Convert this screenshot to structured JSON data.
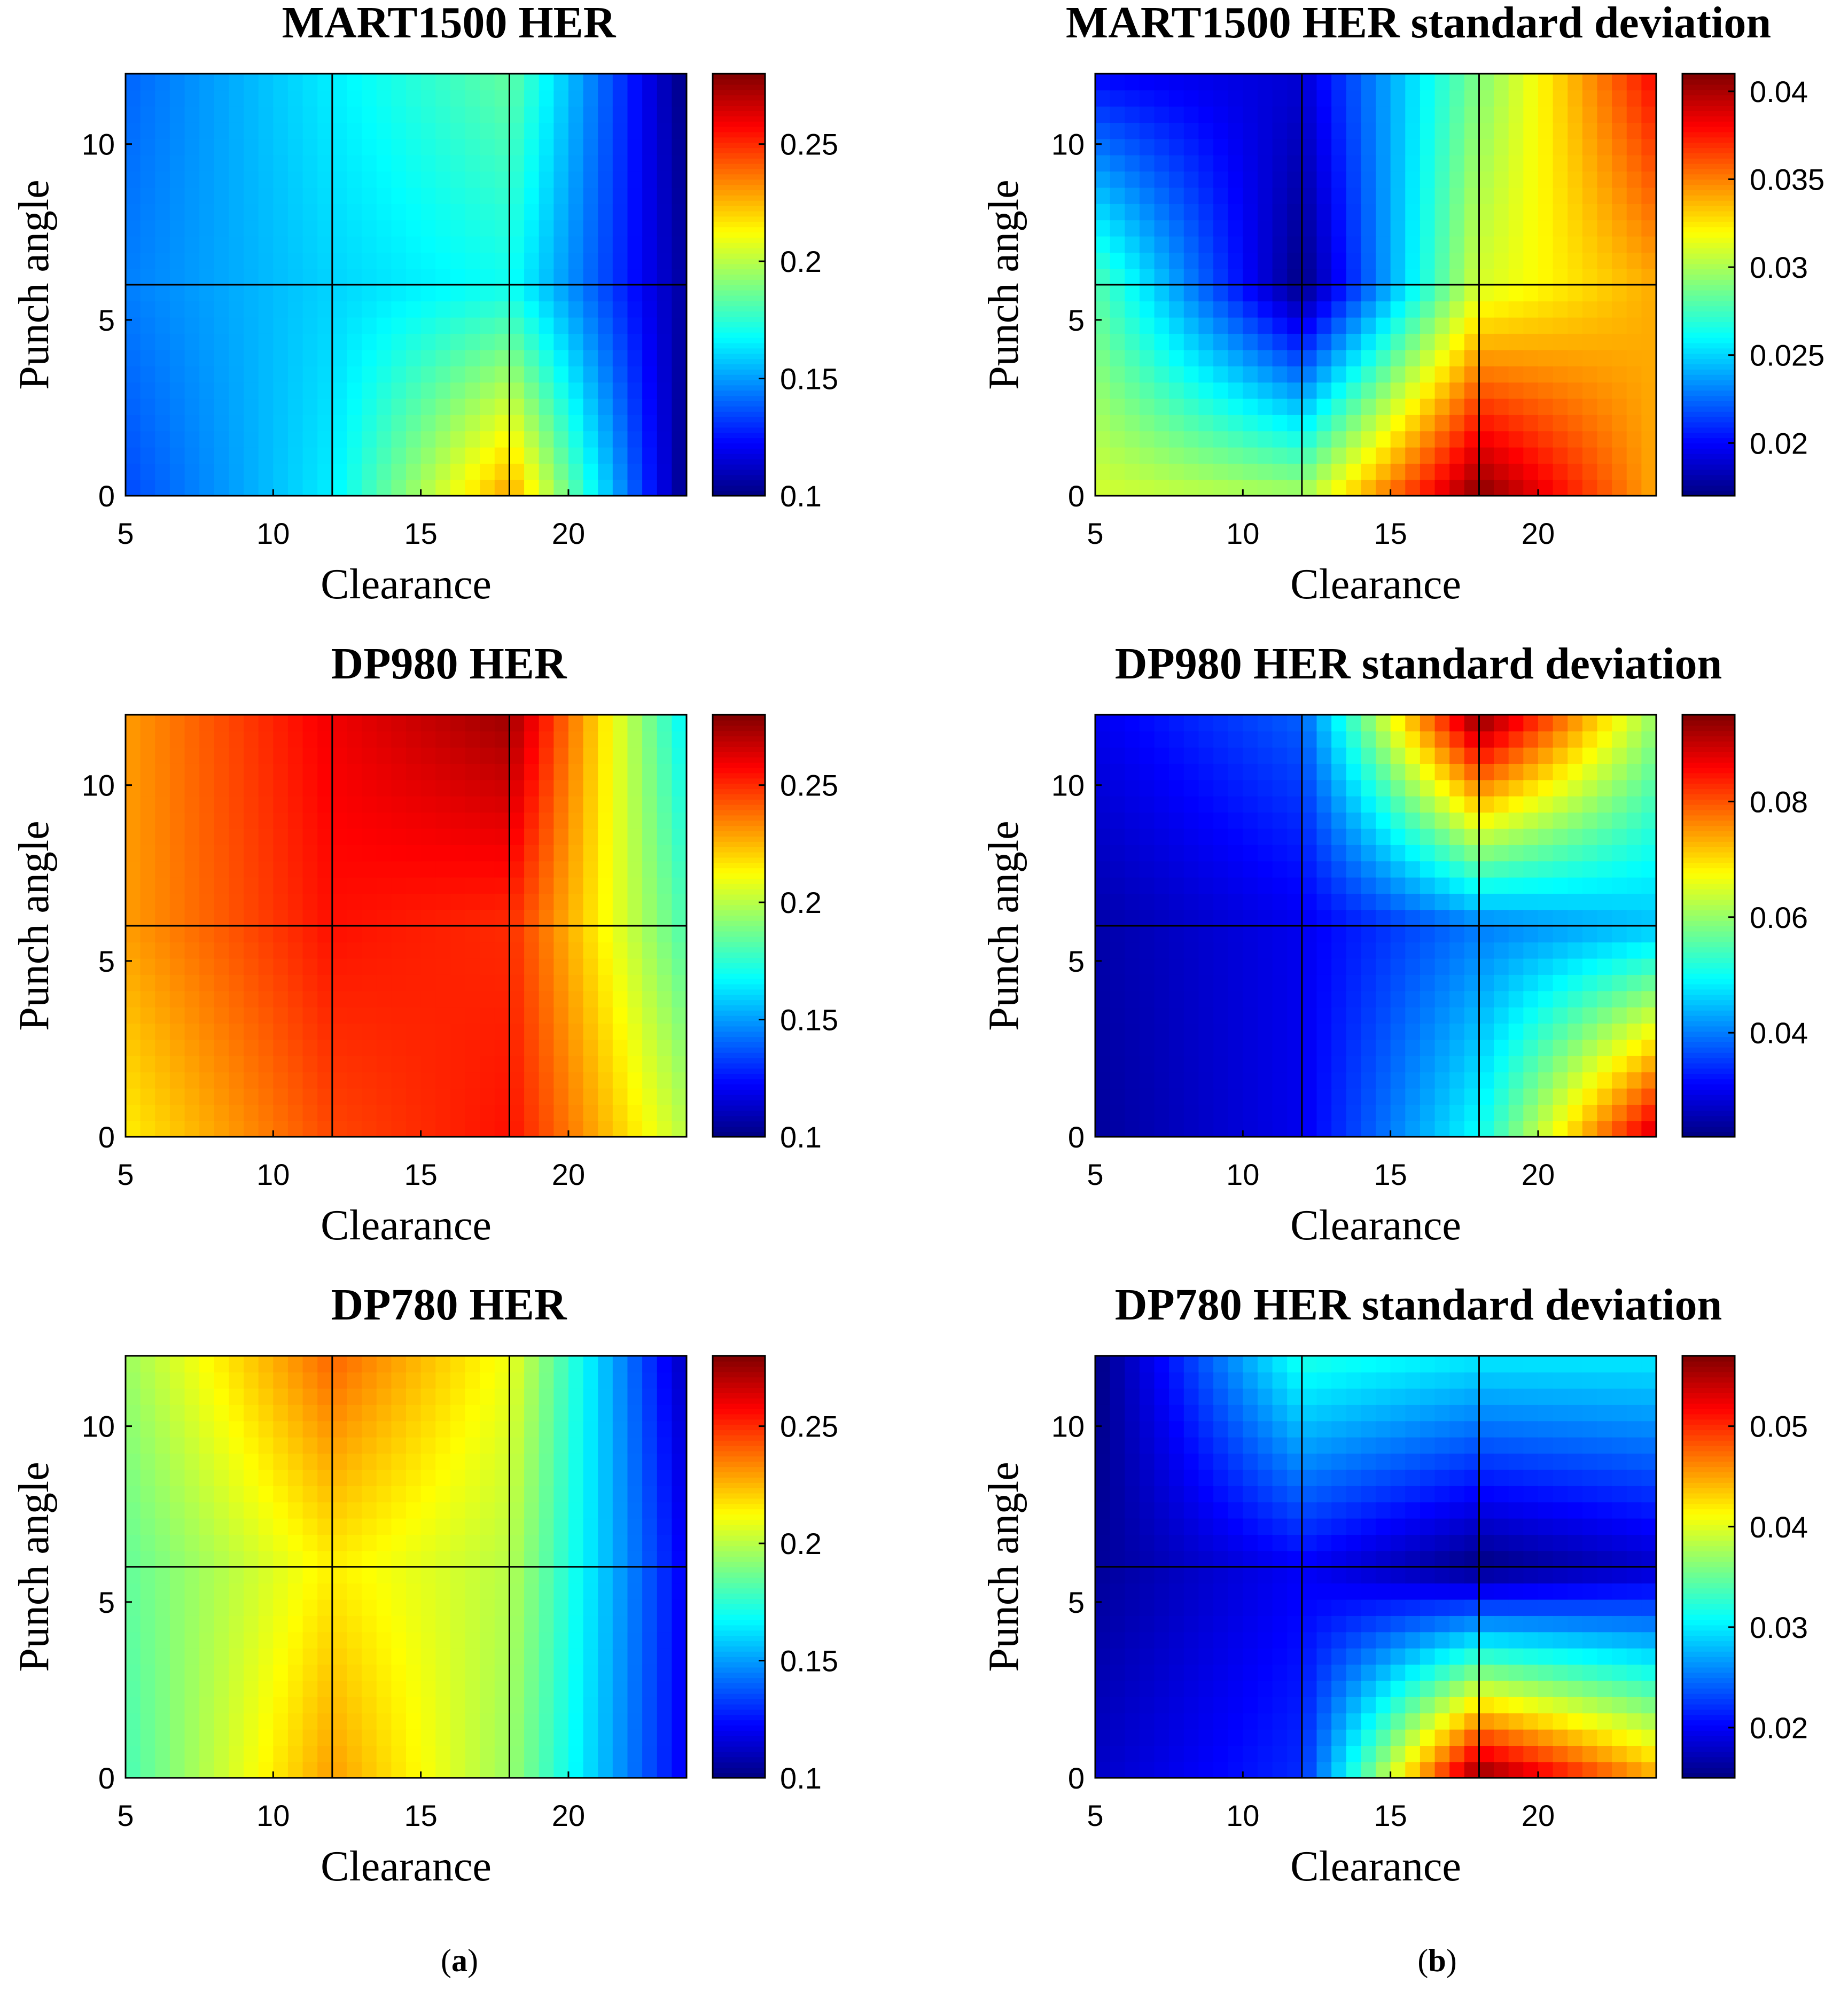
{
  "figure": {
    "panel_label_a_open": "(",
    "panel_label_a_letter": "a",
    "panel_label_a_close": ")",
    "panel_label_b_open": "(",
    "panel_label_b_letter": "b",
    "panel_label_b_close": ")"
  },
  "chart_data": [
    {
      "type": "heatmap",
      "title": "MART1500 HER",
      "xlabel": "Clearance",
      "ylabel": "Punch angle",
      "xlim": [
        5,
        24
      ],
      "ylim": [
        0,
        12
      ],
      "xticks": [
        5,
        10,
        15,
        20
      ],
      "yticks": [
        0,
        5,
        10
      ],
      "clim": [
        0.1,
        0.28
      ],
      "cticks": [
        0.1,
        0.15,
        0.2,
        0.25
      ],
      "colormap": "jet",
      "shading": "flat",
      "grid_x": [
        5,
        12,
        18,
        24
      ],
      "grid_y": [
        0,
        6,
        12
      ],
      "values": [
        [
          0.135,
          0.165,
          0.23,
          0.1
        ],
        [
          0.145,
          0.16,
          0.17,
          0.105
        ],
        [
          0.14,
          0.165,
          0.185,
          0.1
        ]
      ]
    },
    {
      "type": "heatmap",
      "title": "MART1500 HER standard deviation",
      "xlabel": "Clearance",
      "ylabel": "Punch angle",
      "xlim": [
        5,
        24
      ],
      "ylim": [
        0,
        12
      ],
      "xticks": [
        5,
        10,
        15,
        20
      ],
      "yticks": [
        0,
        5,
        10
      ],
      "clim": [
        0.017,
        0.041
      ],
      "cticks": [
        0.02,
        0.025,
        0.03,
        0.035,
        0.04
      ],
      "colormap": "jet",
      "shading": "interp",
      "grid_x": [
        5,
        12,
        18,
        24
      ],
      "grid_y": [
        0,
        6,
        12
      ],
      "values": [
        [
          0.031,
          0.03,
          0.041,
          0.034
        ],
        [
          0.028,
          0.017,
          0.031,
          0.034
        ],
        [
          0.02,
          0.019,
          0.029,
          0.038
        ]
      ]
    },
    {
      "type": "heatmap",
      "title": "DP980 HER",
      "xlabel": "Clearance",
      "ylabel": "Punch angle",
      "xlim": [
        5,
        24
      ],
      "ylim": [
        0,
        12
      ],
      "xticks": [
        5,
        10,
        15,
        20
      ],
      "yticks": [
        0,
        5,
        10
      ],
      "clim": [
        0.1,
        0.28
      ],
      "cticks": [
        0.1,
        0.15,
        0.2,
        0.25
      ],
      "colormap": "jet",
      "shading": "flat",
      "grid_x": [
        5,
        12,
        18,
        24
      ],
      "grid_y": [
        0,
        6,
        12
      ],
      "values": [
        [
          0.215,
          0.245,
          0.255,
          0.2
        ],
        [
          0.23,
          0.255,
          0.25,
          0.18
        ],
        [
          0.23,
          0.26,
          0.275,
          0.165
        ]
      ]
    },
    {
      "type": "heatmap",
      "title": "DP980 HER standard deviation",
      "xlabel": "Clearance",
      "ylabel": "Punch angle",
      "xlim": [
        5,
        24
      ],
      "ylim": [
        0,
        12
      ],
      "xticks": [
        5,
        10,
        15,
        20
      ],
      "yticks": [
        0,
        5,
        10
      ],
      "clim": [
        0.022,
        0.095
      ],
      "cticks": [
        0.04,
        0.06,
        0.08
      ],
      "colormap": "jet",
      "shading": "interp",
      "grid_x": [
        5,
        12,
        18,
        24
      ],
      "grid_y": [
        0,
        6,
        12
      ],
      "values": [
        [
          0.024,
          0.03,
          0.05,
          0.09
        ],
        [
          0.025,
          0.03,
          0.04,
          0.045
        ],
        [
          0.03,
          0.038,
          0.095,
          0.06
        ]
      ]
    },
    {
      "type": "heatmap",
      "title": "DP780 HER",
      "xlabel": "Clearance",
      "ylabel": "Punch angle",
      "xlim": [
        5,
        24
      ],
      "ylim": [
        0,
        12
      ],
      "xticks": [
        5,
        10,
        15,
        20
      ],
      "yticks": [
        0,
        5,
        10
      ],
      "clim": [
        0.1,
        0.28
      ],
      "cticks": [
        0.1,
        0.15,
        0.2,
        0.25
      ],
      "colormap": "jet",
      "shading": "flat",
      "grid_x": [
        5,
        12,
        18,
        24
      ],
      "grid_y": [
        0,
        6,
        12
      ],
      "values": [
        [
          0.18,
          0.23,
          0.195,
          0.12
        ],
        [
          0.185,
          0.215,
          0.2,
          0.12
        ],
        [
          0.195,
          0.24,
          0.21,
          0.11
        ]
      ]
    },
    {
      "type": "heatmap",
      "title": "DP780 HER standard deviation",
      "xlabel": "Clearance",
      "ylabel": "Punch angle",
      "xlim": [
        5,
        24
      ],
      "ylim": [
        0,
        12
      ],
      "xticks": [
        5,
        10,
        15,
        20
      ],
      "yticks": [
        0,
        5,
        10
      ],
      "clim": [
        0.015,
        0.057
      ],
      "cticks": [
        0.02,
        0.03,
        0.04,
        0.05
      ],
      "colormap": "jet",
      "shading": "interp",
      "grid_x": [
        5,
        12,
        18,
        24
      ],
      "grid_y": [
        0,
        6,
        12
      ],
      "values": [
        [
          0.018,
          0.022,
          0.057,
          0.045
        ],
        [
          0.016,
          0.02,
          0.015,
          0.018
        ],
        [
          0.015,
          0.032,
          0.03,
          0.03
        ]
      ]
    }
  ]
}
